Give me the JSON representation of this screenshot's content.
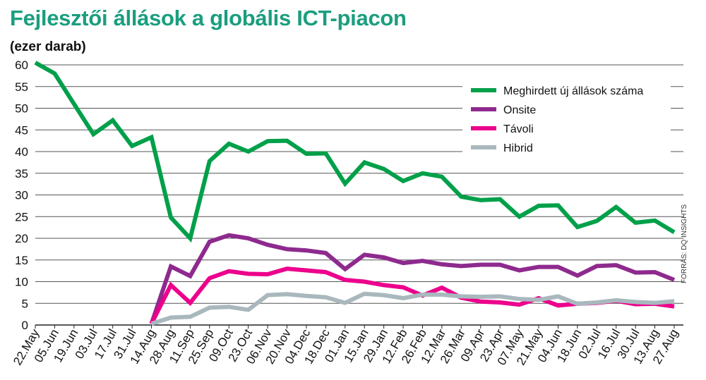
{
  "chart_data": {
    "type": "line",
    "title": "Fejlesztői állások a globális ICT-piacon",
    "subtitle": "(ezer darab)",
    "source": "FORRÁS: DQ INSIGHTS",
    "ylim": [
      0,
      60
    ],
    "yticks": [
      0,
      5,
      10,
      15,
      20,
      25,
      30,
      35,
      40,
      45,
      50,
      55,
      60
    ],
    "grid": true,
    "legend_position": "top-right",
    "x": [
      "22.May",
      "05.Jun",
      "19.Jun",
      "03.Jul",
      "17.Jul",
      "31.Jul",
      "14.Aug",
      "28.Aug",
      "11.Sep",
      "25.Sep",
      "09.Oct",
      "23.Oct",
      "06.Nov",
      "20.Nov",
      "04.Dec",
      "18.Dec",
      "01.Jan",
      "15.Jan",
      "29.Jan",
      "12.Feb",
      "26.Feb",
      "12.Mar",
      "26.Mar",
      "09.Apr",
      "23.Apr",
      "07.May",
      "21.May",
      "04.Jun",
      "18.Jun",
      "02.Jul",
      "16.Jul",
      "30.Jul",
      "13.Aug",
      "27.Aug"
    ],
    "series": [
      {
        "name": "Meghirdett új állások száma",
        "color": "#00a04a",
        "values": [
          60.5,
          58,
          51,
          44,
          47.2,
          41.3,
          43.3,
          24.8,
          20,
          37.8,
          41.8,
          40,
          42.4,
          42.5,
          39.5,
          39.6,
          32.6,
          37.5,
          36,
          33.2,
          35,
          34.2,
          29.6,
          28.8,
          29,
          25,
          27.5,
          27.6,
          22.6,
          24,
          27.2,
          23.6,
          24.1,
          21.4
        ]
      },
      {
        "name": "Onsite",
        "color": "#8e2a8e",
        "values": [
          null,
          null,
          null,
          null,
          null,
          null,
          0.3,
          13.5,
          11.3,
          19.2,
          20.7,
          20,
          18.5,
          17.5,
          17.2,
          16.6,
          12.9,
          16.2,
          15.6,
          14.3,
          14.8,
          14,
          13.6,
          13.9,
          13.9,
          12.6,
          13.4,
          13.4,
          11.4,
          13.6,
          13.8,
          12.1,
          12.2,
          10.4
        ]
      },
      {
        "name": "Távoli",
        "color": "#ec008c",
        "values": [
          null,
          null,
          null,
          null,
          null,
          null,
          0.3,
          9.2,
          5.1,
          10.8,
          12.4,
          11.8,
          11.7,
          13,
          12.6,
          12.2,
          10.4,
          10,
          9.2,
          8.7,
          6.8,
          8.6,
          6.3,
          5.4,
          5.2,
          4.7,
          6.2,
          4.5,
          4.9,
          5.1,
          5.6,
          4.8,
          4.9,
          4.3
        ]
      },
      {
        "name": "Hibrid",
        "color": "#a9b8bd",
        "values": [
          null,
          null,
          null,
          null,
          null,
          null,
          0.3,
          1.7,
          1.9,
          4,
          4.2,
          3.5,
          6.9,
          7.1,
          6.7,
          6.4,
          5.1,
          7.2,
          6.9,
          6.2,
          7,
          7,
          6.6,
          6.5,
          6.6,
          6,
          5.8,
          6.6,
          4.9,
          5.2,
          5.7,
          5.3,
          5.1,
          5.5
        ]
      }
    ]
  }
}
